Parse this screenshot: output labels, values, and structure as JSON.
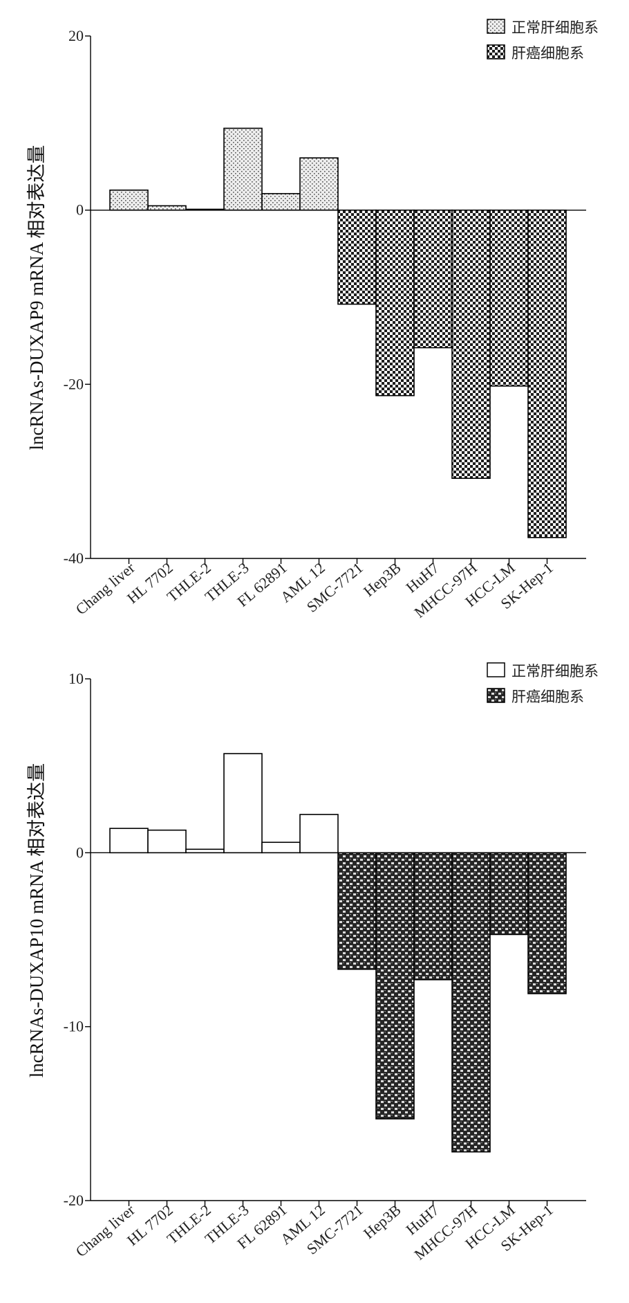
{
  "chart_data": [
    {
      "type": "bar",
      "ylabel": "lncRNAs-DUXAP9 mRNA 相对表达量",
      "xlabel": "",
      "ylim": [
        -40,
        20
      ],
      "yticks": [
        20,
        0,
        -20,
        -40
      ],
      "categories": [
        "Chang liver",
        "HL 7702",
        "THLE-2",
        "THLE-3",
        "FL 62891",
        "AML 12",
        "SMC-7721",
        "Hep3B",
        "HuH7",
        "MHCC-97H",
        "HCC-LM",
        "SK-Hep-1"
      ],
      "series": [
        {
          "name": "正常肝细胞系",
          "values": [
            2.3,
            0.5,
            0.1,
            9.4,
            1.9,
            6.0,
            null,
            null,
            null,
            null,
            null,
            null
          ]
        },
        {
          "name": "肝癌细胞系",
          "values": [
            null,
            null,
            null,
            null,
            null,
            null,
            -10.8,
            -21.3,
            -15.8,
            -30.8,
            -20.2,
            -37.6
          ]
        }
      ],
      "legend": "top-right",
      "grid": false
    },
    {
      "type": "bar",
      "ylabel": "lncRNAs-DUXAP10 mRNA 相对表达量",
      "xlabel": "",
      "ylim": [
        -20,
        10
      ],
      "yticks": [
        10,
        0,
        -10,
        -20
      ],
      "categories": [
        "Chang liver",
        "HL 7702",
        "THLE-2",
        "THLE-3",
        "FL 62891",
        "AML 12",
        "SMC-7721",
        "Hep3B",
        "HuH7",
        "MHCC-97H",
        "HCC-LM",
        "SK-Hep-1"
      ],
      "series": [
        {
          "name": "正常肝细胞系",
          "values": [
            1.4,
            1.3,
            0.2,
            5.7,
            0.6,
            2.2,
            null,
            null,
            null,
            null,
            null,
            null
          ]
        },
        {
          "name": "肝癌细胞系",
          "values": [
            null,
            null,
            null,
            null,
            null,
            null,
            -6.7,
            -15.3,
            -7.3,
            -17.2,
            -4.7,
            -8.1
          ]
        }
      ],
      "legend": "top-right",
      "grid": false
    }
  ],
  "style": {
    "normal_fill": "#ebebeb",
    "normal_fill_2": "#ffffff",
    "cancer_fill": "#2a2a2a"
  }
}
